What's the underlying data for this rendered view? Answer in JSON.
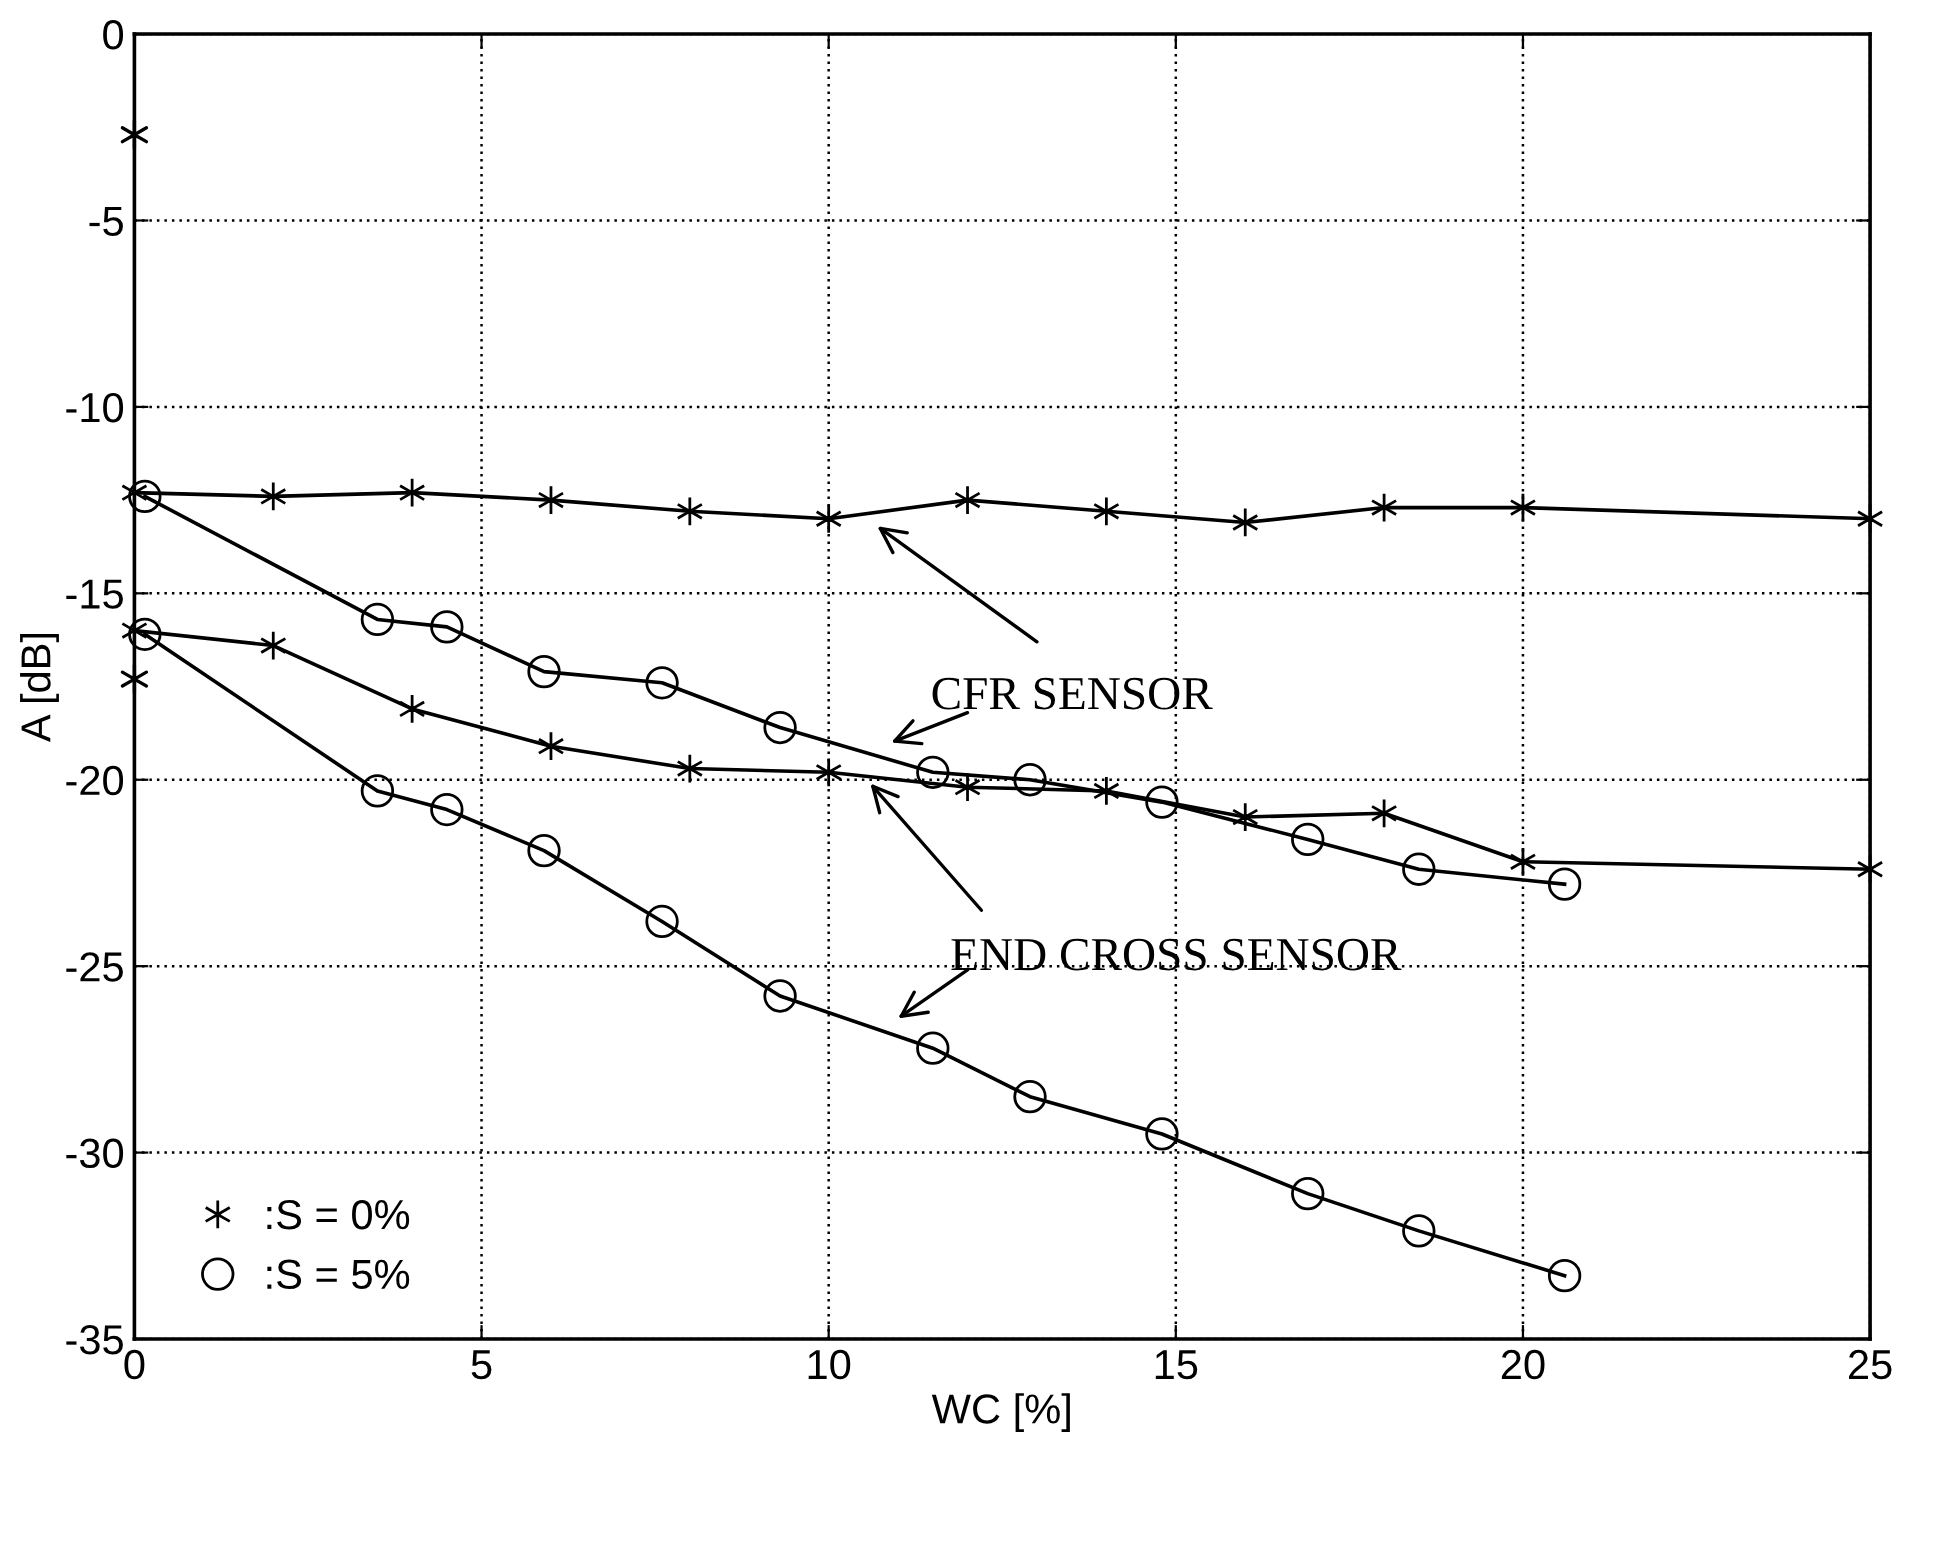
{
  "chart_data": {
    "type": "line",
    "xlabel": "WC [%]",
    "ylabel": "A [dB]",
    "xlim": [
      0,
      25
    ],
    "ylim": [
      -35,
      0
    ],
    "xticks": [
      0,
      5,
      10,
      15,
      20,
      25
    ],
    "yticks": [
      -35,
      -30,
      -25,
      -20,
      -15,
      -10,
      -5,
      0
    ],
    "grid": true,
    "legend": "bottom left",
    "line_style": "solid",
    "series": [
      {
        "name": ":S = 0%",
        "marker": "cross",
        "color": "#000000",
        "x": [
          0,
          2,
          4,
          6,
          8,
          10,
          12,
          14,
          16,
          18,
          20,
          25
        ],
        "values": [
          -12.3,
          -12.4,
          -12.3,
          -12.5,
          -12.8,
          -13.0,
          -12.5,
          -12.8,
          -13.1,
          -12.7,
          -12.7,
          -13.0
        ]
      },
      {
        "marker": "cross",
        "color": "#000000",
        "x": [
          0,
          2,
          4,
          6,
          8,
          10,
          12,
          14,
          16,
          18,
          20,
          25
        ],
        "values": [
          -16.0,
          -16.4,
          -18.1,
          -19.1,
          -19.7,
          -19.8,
          -20.2,
          -20.3,
          -21.0,
          -20.9,
          -22.2,
          -22.4
        ]
      },
      {
        "type": "scatter",
        "marker": "cross",
        "color": "#000000",
        "x": [
          0,
          0
        ],
        "values": [
          -2.7,
          -17.3
        ]
      },
      {
        "name": ":S = 5%",
        "marker": "circle",
        "color": "#000000",
        "x": [
          0.15,
          3.5,
          4.5,
          5.9,
          7.6,
          9.3,
          11.5,
          12.9,
          14.8,
          16.9,
          18.5,
          20.6
        ],
        "values": [
          -12.4,
          -15.7,
          -15.9,
          -17.1,
          -17.4,
          -18.6,
          -19.8,
          -20.0,
          -20.6,
          -21.6,
          -22.4,
          -22.8
        ]
      },
      {
        "marker": "circle",
        "color": "#000000",
        "x": [
          0.15,
          3.5,
          4.5,
          5.9,
          7.6,
          9.3,
          11.5,
          12.9,
          14.8,
          16.9,
          18.5,
          20.6
        ],
        "values": [
          -16.1,
          -20.3,
          -20.8,
          -21.9,
          -23.8,
          -25.8,
          -27.2,
          -28.5,
          -29.5,
          -31.1,
          -32.1,
          -33.3
        ]
      }
    ],
    "annotations": [
      "CFR SENSOR",
      {
        "text": "END CROSS SENSOR",
        "x": 10.6,
        "y": -20.1
      }
    ]
  }
}
